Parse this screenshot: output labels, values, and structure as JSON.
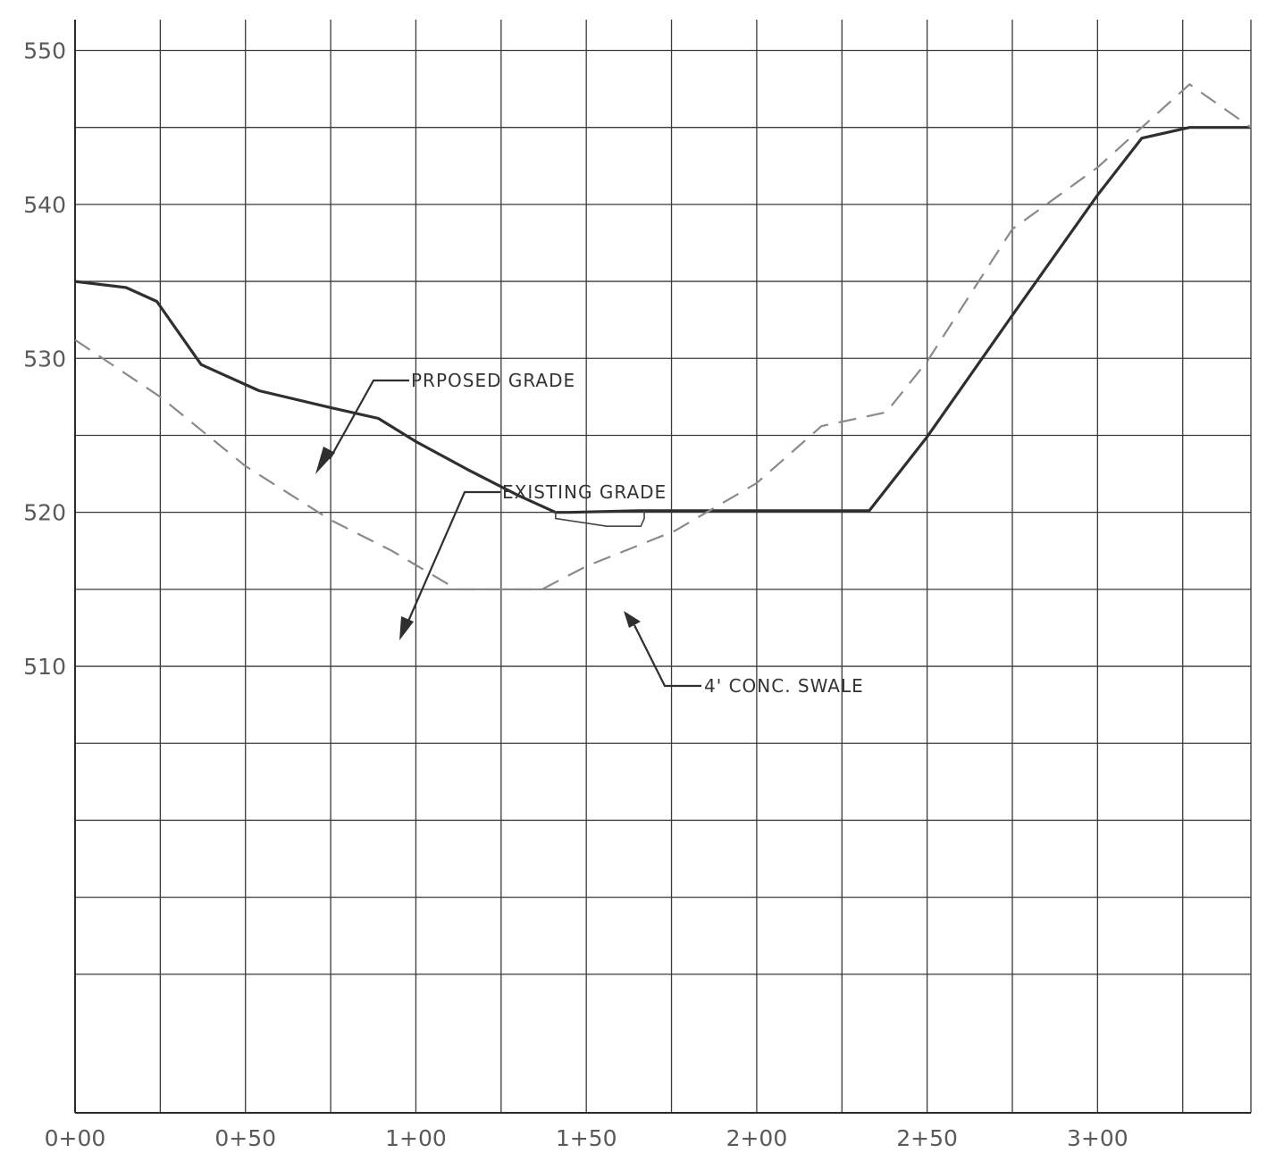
{
  "chart_data": {
    "type": "line",
    "title": "",
    "xlabel": "",
    "ylabel": "",
    "xlim": [
      0,
      345
    ],
    "ylim": [
      481,
      552
    ],
    "y_ticks": [
      {
        "value": 550,
        "label": "550"
      },
      {
        "value": 540,
        "label": "540"
      },
      {
        "value": 530,
        "label": "530"
      },
      {
        "value": 520,
        "label": "520"
      },
      {
        "value": 510,
        "label": "510"
      }
    ],
    "x_ticks": [
      {
        "value": 0,
        "label": "0+00"
      },
      {
        "value": 50,
        "label": "0+50"
      },
      {
        "value": 100,
        "label": "1+00"
      },
      {
        "value": 150,
        "label": "1+50"
      },
      {
        "value": 200,
        "label": "2+00"
      },
      {
        "value": 250,
        "label": "2+50"
      },
      {
        "value": 300,
        "label": "3+00"
      }
    ],
    "grid": {
      "x_step": 25,
      "y_values": [
        550,
        545,
        540,
        535,
        530,
        525,
        520,
        515,
        510,
        505,
        500,
        495,
        490
      ]
    },
    "series": [
      {
        "name": "PRPOSED GRADE",
        "style": "solid",
        "color": "#2f2f2f",
        "x": [
          0,
          15,
          24,
          37,
          54,
          75,
          89,
          100,
          115,
          130,
          141,
          145,
          165,
          175,
          200,
          233,
          250,
          275,
          300,
          313,
          327,
          345
        ],
        "y": [
          535,
          534.6,
          533.7,
          529.6,
          527.9,
          526.8,
          526.1,
          524.6,
          522.8,
          521.1,
          520,
          520,
          520.1,
          520.1,
          520.1,
          520.1,
          524.9,
          532.8,
          540.6,
          544.3,
          545,
          545
        ]
      },
      {
        "name": "EXISTING GRADE",
        "style": "dashed",
        "color": "#8a8a8a",
        "x": [
          0,
          25,
          50,
          75,
          93,
          112,
          137,
          150,
          176,
          200,
          219,
          238,
          250,
          275,
          300,
          327,
          345
        ],
        "y": [
          531.2,
          527.5,
          523,
          519.5,
          517.5,
          515,
          515,
          516.5,
          518.8,
          521.9,
          525.6,
          526.5,
          529.8,
          538.4,
          542.4,
          547.8,
          545
        ]
      }
    ],
    "annotations": [
      {
        "text": "PRPOSED GRADE"
      },
      {
        "text": "EXISTING GRADE"
      },
      {
        "text": "4' CONC. SWALE"
      }
    ]
  }
}
